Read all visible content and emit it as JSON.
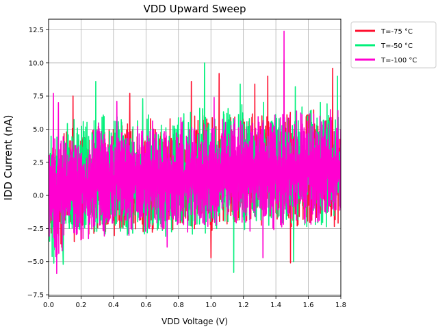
{
  "chart_data": {
    "type": "line",
    "title": "VDD Upward Sweep",
    "xlabel": "VDD Voltage (V)",
    "ylabel": "IDD Current (nA)",
    "xlim": [
      0,
      1.8
    ],
    "ylim": [
      -7.6,
      13.3
    ],
    "xticks": [
      0.0,
      0.2,
      0.4,
      0.6,
      0.8,
      1.0,
      1.2,
      1.4,
      1.6,
      1.8
    ],
    "yticks": [
      -7.5,
      -5.0,
      -2.5,
      0.0,
      2.5,
      5.0,
      7.5,
      10.0,
      12.5
    ],
    "xtick_labels": [
      "0.0",
      "0.2",
      "0.4",
      "0.6",
      "0.8",
      "1.0",
      "1.2",
      "1.4",
      "1.6",
      "1.8"
    ],
    "ytick_labels": [
      "−7.5",
      "−5.0",
      "−2.5",
      "0.0",
      "2.5",
      "5.0",
      "7.5",
      "10.0",
      "12.5"
    ],
    "grid": true,
    "legend_position": "outside-top-right",
    "series": [
      {
        "name": "T=-75 °C",
        "color": "#ff0f2e",
        "x": [
          0.0,
          0.06,
          0.12,
          0.18,
          0.24,
          0.3,
          0.36,
          0.42,
          0.48,
          0.54,
          0.6,
          0.66,
          0.72,
          0.78,
          0.84,
          0.9,
          0.96,
          1.02,
          1.08,
          1.14,
          1.2,
          1.26,
          1.32,
          1.38,
          1.44,
          1.5,
          1.56,
          1.62,
          1.68,
          1.74,
          1.8
        ],
        "y": [
          0.3,
          1.0,
          0.2,
          0.8,
          1.2,
          0.4,
          1.1,
          0.6,
          1.3,
          0.9,
          1.0,
          1.4,
          0.7,
          1.2,
          0.9,
          1.5,
          1.1,
          1.0,
          1.6,
          1.2,
          1.3,
          1.8,
          1.1,
          1.7,
          1.4,
          1.9,
          1.5,
          1.8,
          1.6,
          2.0,
          1.9
        ],
        "band_low": [
          -5.0,
          -4.3,
          -3.8,
          -3.6,
          -3.5,
          -3.3,
          -3.4,
          -3.1,
          -3.2,
          -3.0,
          -2.9,
          -3.0,
          -2.8,
          -2.9,
          -2.7,
          -2.8,
          -2.6,
          -2.7,
          -2.5,
          -2.6,
          -2.4,
          -2.5,
          -2.3,
          -2.5,
          -2.4,
          -2.6,
          -2.3,
          -2.4,
          -2.2,
          -2.4,
          -2.5
        ],
        "band_high": [
          4.4,
          5.0,
          5.2,
          5.5,
          5.4,
          5.8,
          5.6,
          5.9,
          5.7,
          6.0,
          6.1,
          5.9,
          6.2,
          6.0,
          6.3,
          6.1,
          6.4,
          6.2,
          6.5,
          6.3,
          6.6,
          6.4,
          6.7,
          6.5,
          6.6,
          6.8,
          6.6,
          6.9,
          6.7,
          7.0,
          6.8
        ],
        "spikes": [
          [
            0.15,
            7.5
          ],
          [
            0.5,
            7.7
          ],
          [
            0.88,
            8.6
          ],
          [
            1.05,
            9.2
          ],
          [
            1.27,
            8.4
          ],
          [
            1.35,
            9.0
          ],
          [
            1.45,
            10.2
          ],
          [
            1.75,
            9.6
          ],
          [
            1.0,
            -4.7
          ],
          [
            1.49,
            -5.1
          ]
        ]
      },
      {
        "name": "T=-50 °C",
        "color": "#00f07a",
        "x": [
          0.0,
          0.06,
          0.12,
          0.18,
          0.24,
          0.3,
          0.36,
          0.42,
          0.48,
          0.54,
          0.6,
          0.66,
          0.72,
          0.78,
          0.84,
          0.9,
          0.96,
          1.02,
          1.08,
          1.14,
          1.2,
          1.26,
          1.32,
          1.38,
          1.44,
          1.5,
          1.56,
          1.62,
          1.68,
          1.74,
          1.8
        ],
        "y": [
          0.2,
          0.9,
          0.4,
          1.0,
          0.6,
          1.2,
          0.8,
          1.1,
          0.9,
          1.3,
          1.0,
          1.2,
          1.4,
          1.0,
          1.5,
          1.2,
          1.6,
          1.3,
          1.5,
          1.7,
          1.4,
          1.8,
          1.6,
          1.9,
          1.7,
          1.8,
          2.0,
          1.7,
          1.9,
          2.1,
          2.0
        ],
        "band_low": [
          -6.4,
          -5.0,
          -4.1,
          -3.9,
          -3.7,
          -3.6,
          -3.4,
          -3.5,
          -3.3,
          -3.2,
          -3.3,
          -3.1,
          -3.2,
          -3.0,
          -3.1,
          -2.9,
          -3.0,
          -2.8,
          -2.9,
          -2.7,
          -2.8,
          -2.9,
          -2.7,
          -2.8,
          -2.6,
          -2.7,
          -2.9,
          -2.6,
          -2.7,
          -2.5,
          -2.6
        ],
        "band_high": [
          4.8,
          5.4,
          5.7,
          6.0,
          5.9,
          6.3,
          6.1,
          6.4,
          6.2,
          6.5,
          6.6,
          6.4,
          6.7,
          6.5,
          6.8,
          6.6,
          6.9,
          6.7,
          7.0,
          6.8,
          7.1,
          6.9,
          7.2,
          7.0,
          7.1,
          7.3,
          7.1,
          7.4,
          7.2,
          7.5,
          7.3
        ],
        "spikes": [
          [
            0.29,
            8.6
          ],
          [
            0.58,
            7.3
          ],
          [
            0.96,
            10.0
          ],
          [
            1.18,
            8.4
          ],
          [
            1.52,
            8.2
          ],
          [
            1.78,
            9.0
          ],
          [
            1.14,
            -5.8
          ],
          [
            1.51,
            -5.0
          ],
          [
            0.09,
            -5.2
          ]
        ]
      },
      {
        "name": "T=-100 °C",
        "color": "#ff00d0",
        "x": [
          0.0,
          0.06,
          0.12,
          0.18,
          0.24,
          0.3,
          0.36,
          0.42,
          0.48,
          0.54,
          0.6,
          0.66,
          0.72,
          0.78,
          0.84,
          0.9,
          0.96,
          1.02,
          1.08,
          1.14,
          1.2,
          1.26,
          1.32,
          1.38,
          1.44,
          1.5,
          1.56,
          1.62,
          1.68,
          1.74,
          1.8
        ],
        "y": [
          0.1,
          0.6,
          0.3,
          0.9,
          0.5,
          1.0,
          0.7,
          1.1,
          0.8,
          1.2,
          0.9,
          1.3,
          1.0,
          1.2,
          1.4,
          1.1,
          1.5,
          1.3,
          1.6,
          1.4,
          1.5,
          1.7,
          1.6,
          1.8,
          1.7,
          1.9,
          1.8,
          2.0,
          1.8,
          2.1,
          2.0
        ],
        "band_low": [
          -5.6,
          -4.6,
          -3.9,
          -3.7,
          -3.6,
          -3.5,
          -3.4,
          -3.3,
          -3.2,
          -3.1,
          -3.2,
          -3.0,
          -3.1,
          -2.9,
          -3.0,
          -2.8,
          -2.9,
          -2.7,
          -2.8,
          -2.6,
          -2.7,
          -2.8,
          -2.6,
          -2.7,
          -2.9,
          -2.6,
          -2.8,
          -2.5,
          -2.6,
          -2.4,
          -2.5
        ],
        "band_high": [
          4.3,
          4.9,
          5.1,
          5.3,
          5.2,
          5.6,
          5.4,
          5.7,
          5.5,
          5.8,
          5.9,
          5.7,
          6.0,
          5.8,
          6.1,
          5.9,
          6.2,
          6.0,
          6.3,
          6.1,
          6.4,
          6.2,
          6.5,
          6.3,
          6.4,
          6.6,
          6.4,
          6.7,
          6.5,
          6.8,
          6.6
        ],
        "spikes": [
          [
            0.03,
            7.7
          ],
          [
            0.06,
            7.0
          ],
          [
            0.42,
            7.1
          ],
          [
            1.02,
            7.4
          ],
          [
            1.45,
            12.4
          ],
          [
            1.32,
            -4.7
          ],
          [
            0.73,
            -3.9
          ],
          [
            0.05,
            -5.9
          ]
        ]
      }
    ]
  }
}
